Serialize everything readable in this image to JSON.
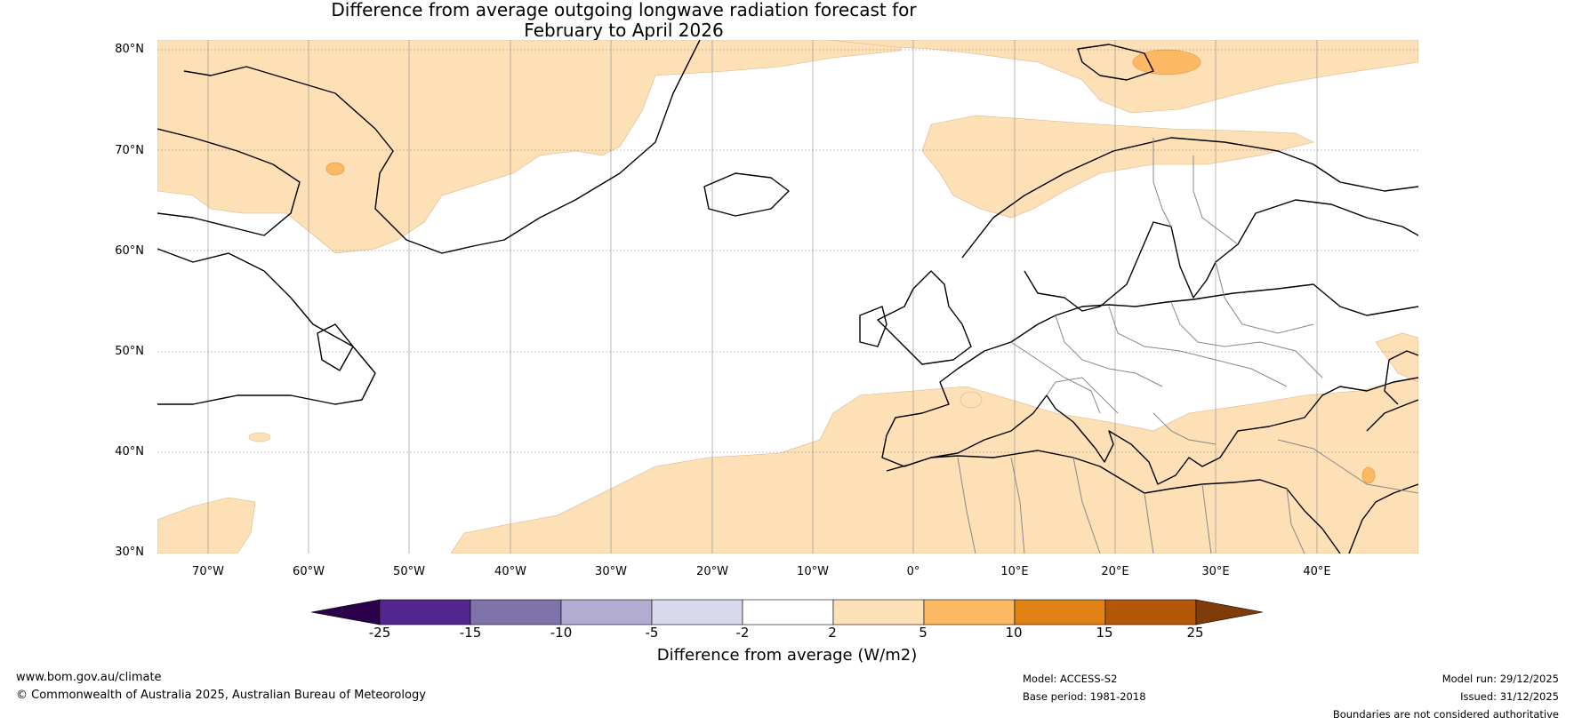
{
  "title": {
    "line1": "Difference from average outgoing longwave radiation forecast for",
    "line2": "February to April 2026"
  },
  "map": {
    "lat_labels": [
      "80°N",
      "70°N",
      "60°N",
      "50°N",
      "40°N",
      "30°N"
    ],
    "lon_labels": [
      "70°W",
      "60°W",
      "50°W",
      "40°W",
      "30°W",
      "20°W",
      "10°W",
      "0°",
      "10°E",
      "20°E",
      "30°E",
      "40°E"
    ],
    "extent": {
      "lon_min": -75,
      "lon_max": 50,
      "lat_min": 30,
      "lat_max": 81
    }
  },
  "colorbar": {
    "tick_labels": [
      "-25",
      "-15",
      "-10",
      "-5",
      "-2",
      "2",
      "5",
      "10",
      "15",
      "25"
    ],
    "bins": [
      {
        "from": -25,
        "to": -15,
        "color": "#54278f"
      },
      {
        "from": -15,
        "to": -10,
        "color": "#8073ac"
      },
      {
        "from": -10,
        "to": -5,
        "color": "#b2abd2"
      },
      {
        "from": -5,
        "to": -2,
        "color": "#d8daeb"
      },
      {
        "from": -2,
        "to": 2,
        "color": "#ffffff"
      },
      {
        "from": 2,
        "to": 5,
        "color": "#fee0b6"
      },
      {
        "from": 5,
        "to": 10,
        "color": "#fdb863"
      },
      {
        "from": 10,
        "to": 15,
        "color": "#e08214"
      },
      {
        "from": 15,
        "to": 25,
        "color": "#b35806"
      }
    ],
    "under_color": "#2d004b",
    "over_color": "#7f3b08",
    "label": "Difference from average (W/m2)"
  },
  "footer": {
    "website": "www.bom.gov.au/climate",
    "copyright": "© Commonwealth of Australia 2025, Australian Bureau of Meteorology",
    "model": "Model: ACCESS-S2",
    "base_period": "Base period: 1981-2018",
    "model_run": "Model run: 29/12/2025",
    "issued": "Issued: 31/12/2025",
    "disclaimer": "Boundaries are not considered authoritative"
  }
}
